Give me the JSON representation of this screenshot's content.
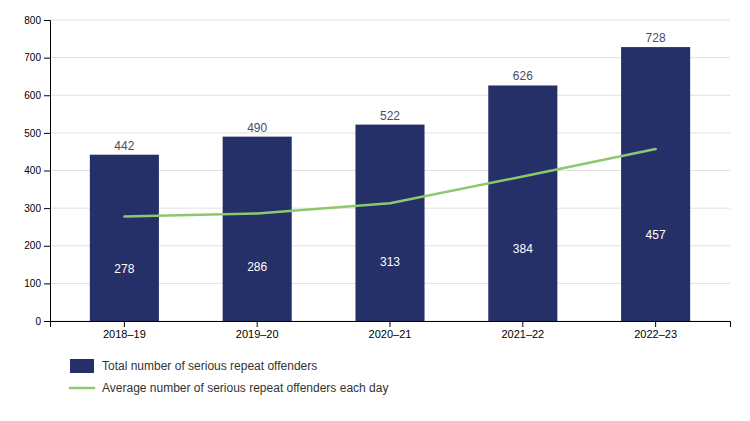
{
  "chart_data": {
    "type": "bar",
    "categories": [
      "2018–19",
      "2019–20",
      "2020–21",
      "2021–22",
      "2022–23"
    ],
    "series": [
      {
        "name": "Total number of serious repeat offenders",
        "type": "bar",
        "color": "#253068",
        "values": [
          442,
          490,
          522,
          626,
          728
        ]
      },
      {
        "name": "Average number of serious repeat offenders each day",
        "type": "line",
        "color": "#8cc870",
        "values": [
          278,
          286,
          313,
          384,
          457
        ]
      }
    ],
    "ylim": [
      0,
      800
    ],
    "yticks": [
      0,
      100,
      200,
      300,
      400,
      500,
      600,
      700,
      800
    ],
    "grid": true,
    "data_labels": true,
    "legend": "bottom"
  }
}
